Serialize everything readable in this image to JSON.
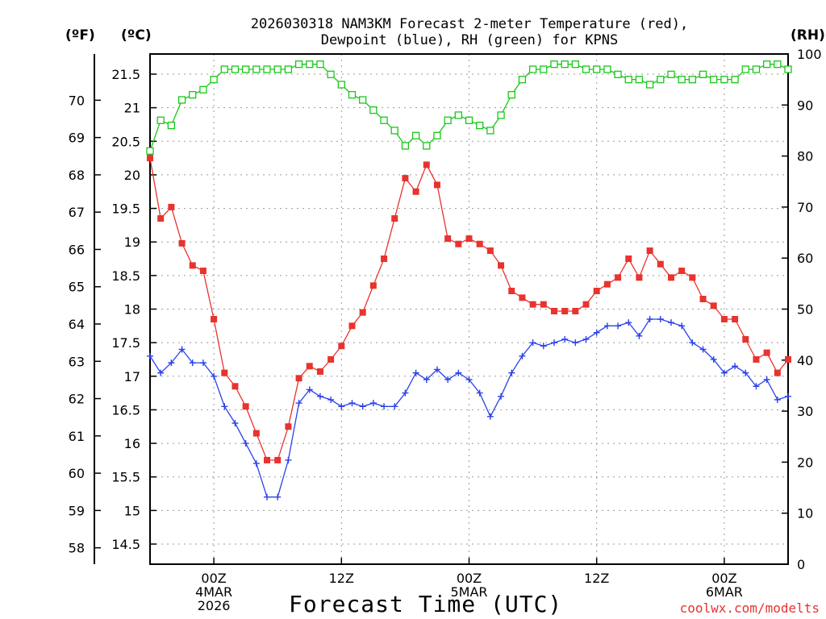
{
  "header": {
    "title_line1": "2026030318 NAM3KM Forecast 2-meter Temperature (red),",
    "title_line2": "Dewpoint (blue), RH (green) for KPNS"
  },
  "units": {
    "fahrenheit": "(ºF)",
    "celsius": "(ºC)",
    "rh": "(RH)"
  },
  "footer": {
    "xlabel": "Forecast Time (UTC)",
    "credit": "coolwx.com/modelts"
  },
  "colors": {
    "temperature": "#e8332e",
    "dewpoint": "#2a41e8",
    "rh": "#18c818",
    "grid": "#9a9a9a"
  },
  "chart_data": {
    "type": "line",
    "title": "2026030318 NAM3KM Forecast 2-meter Temperature (red), Dewpoint (blue), RH (green) for KPNS",
    "xlabel": "Forecast Time (UTC)",
    "x_start": "2026-03-03 18Z",
    "x_step_hours": 1,
    "x_ticks": [
      {
        "hour": 6,
        "label": [
          "00Z",
          "4MAR",
          "2026"
        ]
      },
      {
        "hour": 18,
        "label": [
          "12Z"
        ]
      },
      {
        "hour": 30,
        "label": [
          "00Z",
          "5MAR"
        ]
      },
      {
        "hour": 42,
        "label": [
          "12Z"
        ]
      },
      {
        "hour": 54,
        "label": [
          "00Z",
          "6MAR"
        ]
      }
    ],
    "xlim": [
      0,
      60
    ],
    "y_left": {
      "unit": "°C",
      "ylim": [
        14.2,
        21.8
      ],
      "ticks": [
        14.5,
        15,
        15.5,
        16,
        16.5,
        17,
        17.5,
        18,
        18.5,
        19,
        19.5,
        20,
        20.5,
        21,
        21.5
      ],
      "tick_labels": [
        "14.5",
        "15",
        "15.5",
        "16",
        "16.5",
        "17",
        "17.5",
        "18",
        "18.5",
        "19",
        "19.5",
        "20",
        "20.5",
        "21",
        "21.5"
      ]
    },
    "y_far_left": {
      "unit": "°F",
      "ticks": [
        58,
        59,
        60,
        61,
        62,
        63,
        64,
        65,
        66,
        67,
        68,
        69,
        70
      ],
      "tick_labels": [
        "58",
        "59",
        "60",
        "61",
        "62",
        "63",
        "64",
        "65",
        "66",
        "67",
        "68",
        "69",
        "70"
      ]
    },
    "y_right": {
      "unit": "RH",
      "ylim": [
        0,
        100
      ],
      "ticks": [
        0,
        10,
        20,
        30,
        40,
        50,
        60,
        70,
        80,
        90,
        100
      ],
      "tick_labels": [
        "0",
        "10",
        "20",
        "30",
        "40",
        "50",
        "60",
        "70",
        "80",
        "90",
        "100"
      ]
    },
    "grid": true,
    "series": [
      {
        "name": "Temperature",
        "axis": "left",
        "marker": "filled-square",
        "values": [
          20.25,
          19.35,
          19.52,
          18.98,
          18.65,
          18.57,
          17.85,
          17.05,
          16.85,
          16.55,
          16.15,
          15.75,
          15.75,
          16.25,
          16.97,
          17.15,
          17.07,
          17.25,
          17.45,
          17.75,
          17.95,
          18.35,
          18.75,
          19.35,
          19.95,
          19.75,
          20.15,
          19.85,
          19.05,
          18.97,
          19.05,
          18.97,
          18.87,
          18.65,
          18.27,
          18.17,
          18.07,
          18.07,
          17.97,
          17.97,
          17.97,
          18.07,
          18.27,
          18.37,
          18.47,
          18.75,
          18.47,
          18.87,
          18.67,
          18.47,
          18.57,
          18.47,
          18.15,
          18.05,
          17.85,
          17.85,
          17.55,
          17.25,
          17.35,
          17.05,
          17.25
        ]
      },
      {
        "name": "Dewpoint",
        "axis": "left",
        "marker": "plus",
        "values": [
          17.3,
          17.05,
          17.2,
          17.4,
          17.2,
          17.2,
          17.0,
          16.55,
          16.3,
          16.0,
          15.7,
          15.2,
          15.2,
          15.75,
          16.6,
          16.8,
          16.7,
          16.65,
          16.55,
          16.6,
          16.55,
          16.6,
          16.55,
          16.55,
          16.75,
          17.05,
          16.95,
          17.1,
          16.95,
          17.05,
          16.95,
          16.75,
          16.4,
          16.7,
          17.05,
          17.3,
          17.5,
          17.45,
          17.5,
          17.55,
          17.5,
          17.55,
          17.65,
          17.75,
          17.75,
          17.8,
          17.6,
          17.85,
          17.85,
          17.8,
          17.75,
          17.5,
          17.4,
          17.25,
          17.05,
          17.15,
          17.05,
          16.85,
          16.95,
          16.65,
          16.7
        ]
      },
      {
        "name": "RH",
        "axis": "right",
        "marker": "open-square",
        "values": [
          81,
          87,
          86,
          91,
          92,
          93,
          95,
          97,
          97,
          97,
          97,
          97,
          97,
          97,
          98,
          98,
          98,
          96,
          94,
          92,
          91,
          89,
          87,
          85,
          82,
          84,
          82,
          84,
          87,
          88,
          87,
          86,
          85,
          88,
          92,
          95,
          97,
          97,
          98,
          98,
          98,
          97,
          97,
          97,
          96,
          95,
          95,
          94,
          95,
          96,
          95,
          95,
          96,
          95,
          95,
          95,
          97,
          97,
          98,
          98,
          97
        ]
      }
    ]
  }
}
